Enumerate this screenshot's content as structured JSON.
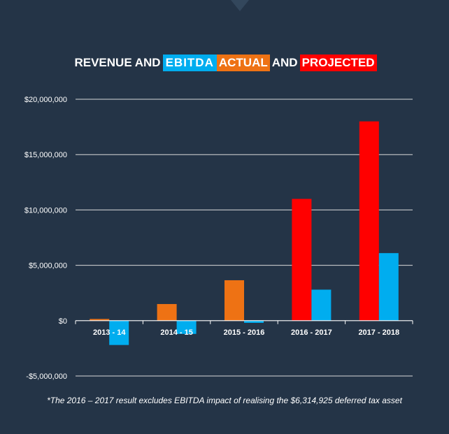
{
  "title": {
    "part1": "REVENUE AND",
    "part2": "EBITDA",
    "part3": "ACTUAL",
    "part4": "AND",
    "part5": "PROJECTED"
  },
  "colors": {
    "revenue_actual": "#ee7214",
    "revenue_projected": "#ff0000",
    "ebitda": "#00adef",
    "background": "#243447"
  },
  "chart_data": {
    "type": "bar",
    "categories": [
      "2013 - 14",
      "2014 - 15",
      "2015 - 2016",
      "2016 - 2017",
      "2017 - 2018"
    ],
    "series": [
      {
        "values": [
          150000,
          1500000,
          3650000,
          11000000,
          18000000
        ],
        "colors": [
          "#ee7214",
          "#ee7214",
          "#ee7214",
          "#ff0000",
          "#ff0000"
        ]
      },
      {
        "values": [
          -2200000,
          -1200000,
          -200000,
          2800000,
          6100000
        ],
        "color": "#00adef"
      }
    ],
    "y_ticks": [
      20000000,
      15000000,
      10000000,
      5000000,
      0,
      -5000000
    ],
    "y_tick_labels": [
      "$20,000,000",
      "$15,000,000",
      "$10,000,000",
      "$5,000,000",
      "$0",
      "-$5,000,000"
    ],
    "ylim": [
      -5000000,
      20000000
    ],
    "grid": true,
    "legend": "title"
  },
  "footnote": "*The 2016 – 2017 result excludes EBITDA impact of realising the $6,314,925 deferred tax asset"
}
